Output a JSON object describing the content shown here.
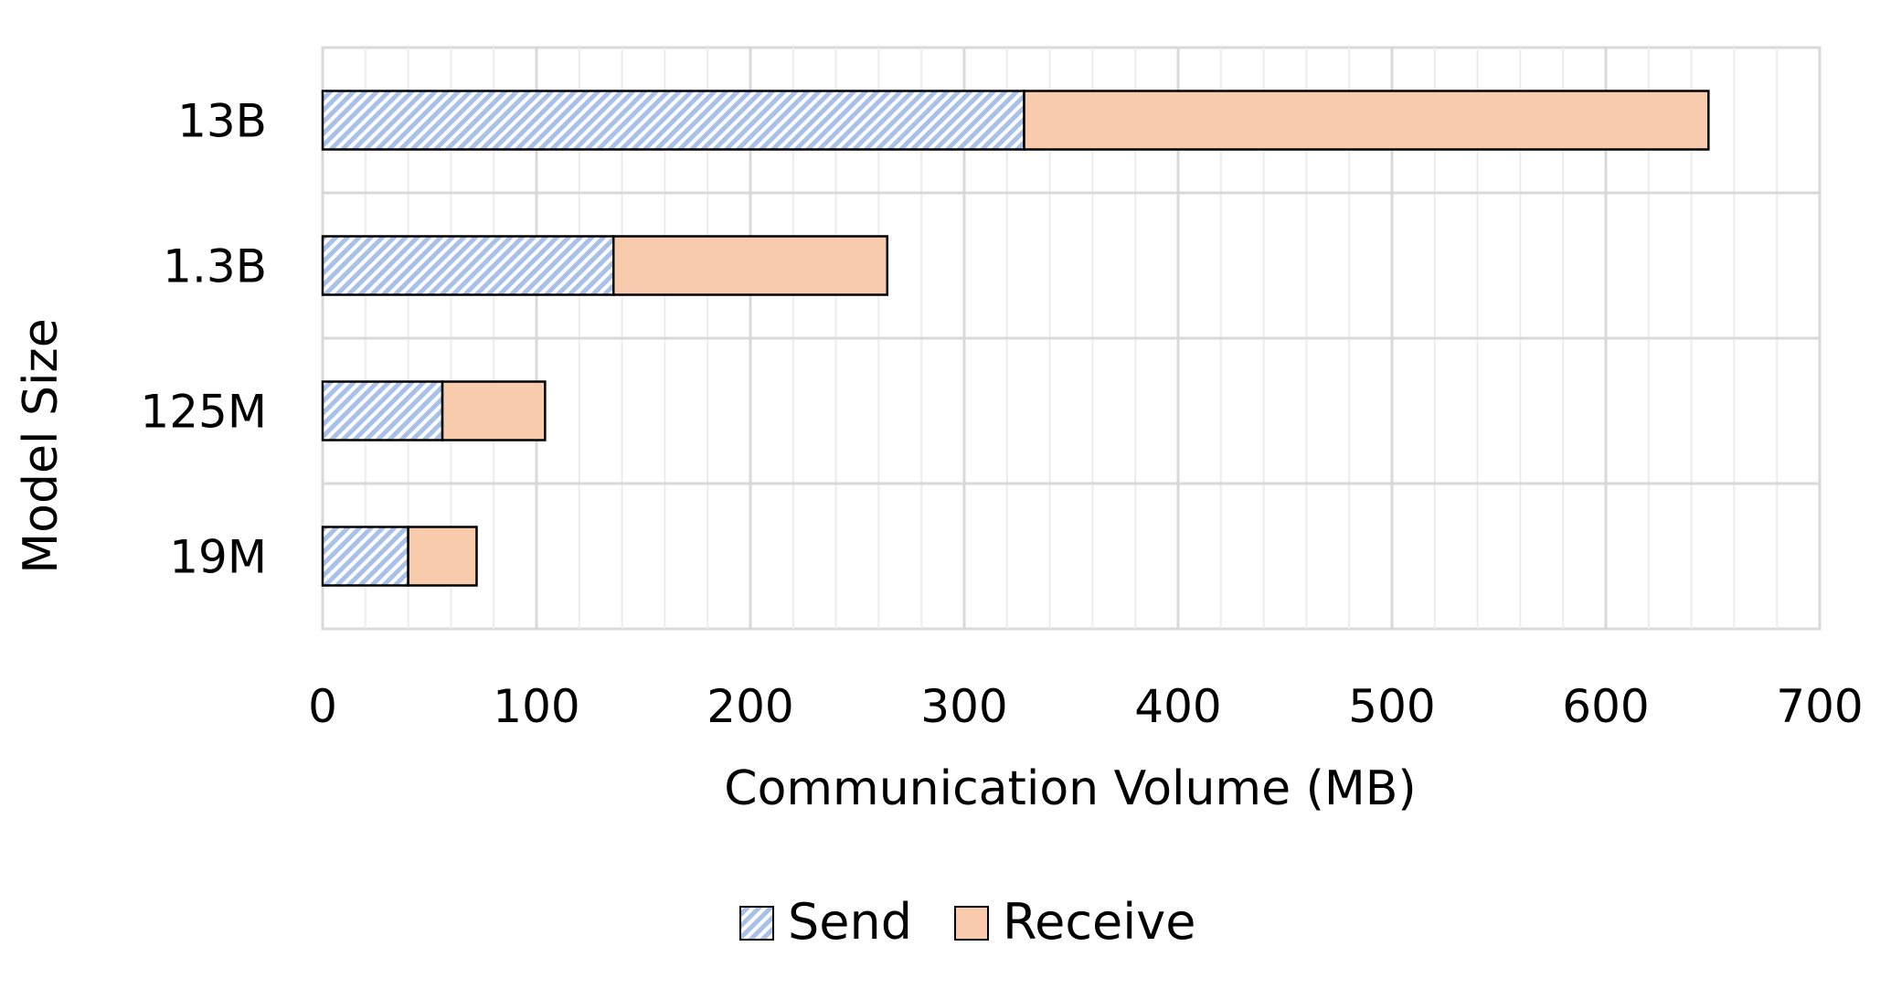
{
  "chart_data": {
    "type": "bar",
    "orientation": "horizontal",
    "stacked": true,
    "categories": [
      "19M",
      "125M",
      "1.3B",
      "13B"
    ],
    "series": [
      {
        "name": "Send",
        "values": [
          40,
          56,
          136,
          328
        ],
        "color": "#A9C0E8",
        "pattern": "diagonal-hatch"
      },
      {
        "name": "Receive",
        "values": [
          32,
          48,
          128,
          320
        ],
        "color": "#F8CBAD"
      }
    ],
    "xlabel": "Communication Volume (MB)",
    "ylabel": "Model Size",
    "xlim": [
      0,
      700
    ],
    "xticks": [
      0,
      100,
      200,
      300,
      400,
      500,
      600,
      700
    ],
    "grid": "vertical major and minor",
    "legend_position": "bottom-center"
  }
}
